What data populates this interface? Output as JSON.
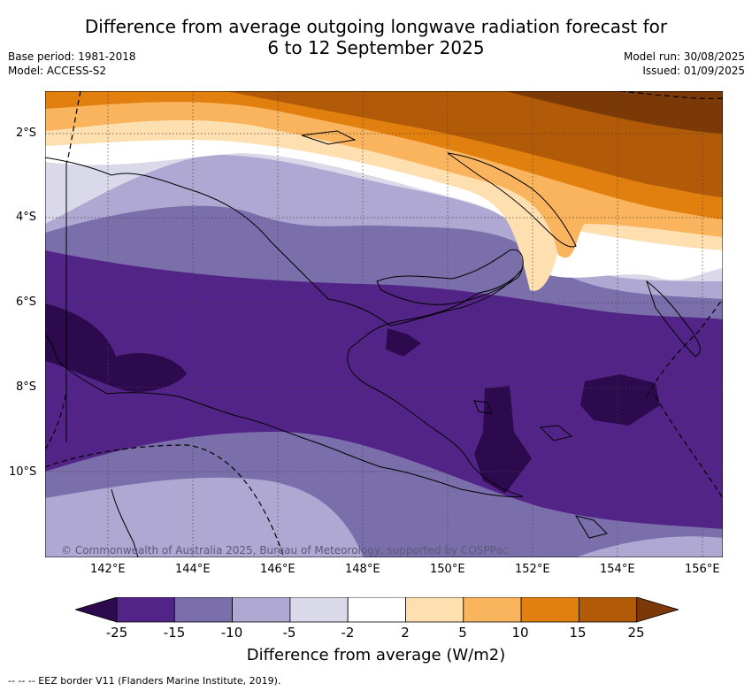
{
  "title_line1": "Difference from average outgoing longwave radiation forecast for",
  "title_line2": "6 to 12 September 2025",
  "meta": {
    "base_period": "Base period: 1981-2018",
    "model": "Model: ACCESS-S2",
    "model_run": "Model run: 30/08/2025",
    "issued": "Issued: 01/09/2025"
  },
  "map": {
    "lat_labels": [
      "2°S",
      "4°S",
      "6°S",
      "8°S",
      "10°S"
    ],
    "lon_labels": [
      "142°E",
      "144°E",
      "146°E",
      "148°E",
      "150°E",
      "152°E",
      "154°E",
      "156°E"
    ],
    "copyright": "© Commonwealth of Australia 2025, Bureau of Meteorology, supported by COSPPac"
  },
  "colorbar": {
    "title": "Difference from average (W/m2)",
    "ticks": [
      "-25",
      "-15",
      "-10",
      "-5",
      "-2",
      "2",
      "5",
      "10",
      "15",
      "25"
    ],
    "colors": [
      "#2d0a4e",
      "#532487",
      "#7b6fab",
      "#afa8d2",
      "#d9d9ea",
      "#ffffff",
      "#fedfb0",
      "#fbb45e",
      "#e1800f",
      "#b15a07",
      "#7c3908"
    ]
  },
  "footer": "-- --  -- EEZ border V11 (Flanders Marine Institute, 2019)."
}
